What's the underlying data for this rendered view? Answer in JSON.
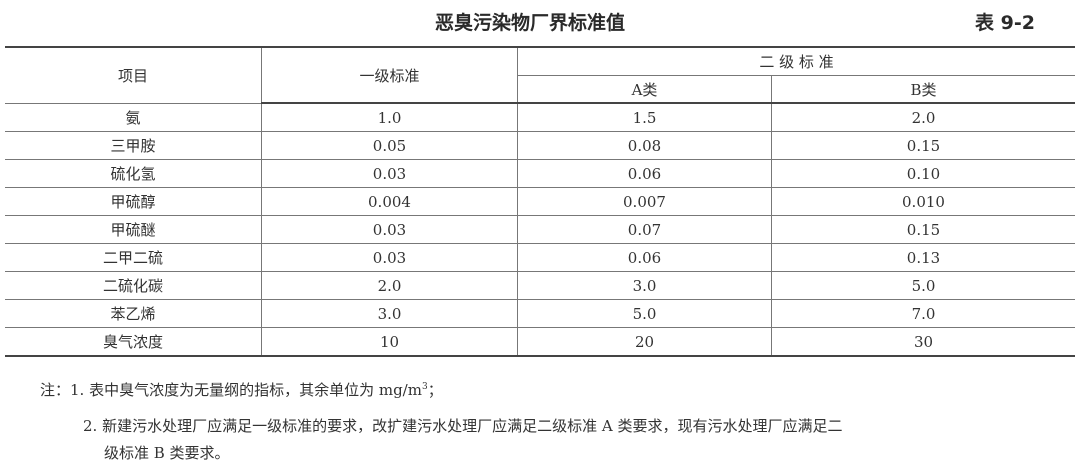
{
  "title": "恶臭污染物厂界标准值",
  "table_number": "表 9-2",
  "table": {
    "headers": {
      "item": "项目",
      "grade1": "一级标准",
      "grade2": "二 级 标 准",
      "grade2_a": "A类",
      "grade2_b": "B类"
    },
    "rows": [
      {
        "item": "氨",
        "grade1": "1.0",
        "a": "1.5",
        "b": "2.0"
      },
      {
        "item": "三甲胺",
        "grade1": "0.05",
        "a": "0.08",
        "b": "0.15"
      },
      {
        "item": "硫化氢",
        "grade1": "0.03",
        "a": "0.06",
        "b": "0.10"
      },
      {
        "item": "甲硫醇",
        "grade1": "0.004",
        "a": "0.007",
        "b": "0.010"
      },
      {
        "item": "甲硫醚",
        "grade1": "0.03",
        "a": "0.07",
        "b": "0.15"
      },
      {
        "item": "二甲二硫",
        "grade1": "0.03",
        "a": "0.06",
        "b": "0.13"
      },
      {
        "item": "二硫化碳",
        "grade1": "2.0",
        "a": "3.0",
        "b": "5.0"
      },
      {
        "item": "苯乙烯",
        "grade1": "3.0",
        "a": "5.0",
        "b": "7.0"
      },
      {
        "item": "臭气浓度",
        "grade1": "10",
        "a": "20",
        "b": "30"
      }
    ]
  },
  "notes": {
    "note1_prefix": "注：1. 表中臭气浓度为无量纲的指标，其余单位为 mg/m",
    "note1_sup": "3",
    "note1_suffix": "；",
    "note2_line1": "2. 新建污水处理厂应满足一级标准的要求，改扩建污水处理厂应满足二级标准 A 类要求，现有污水处理厂应满足二",
    "note2_line2": "级标准 B 类要求。"
  }
}
